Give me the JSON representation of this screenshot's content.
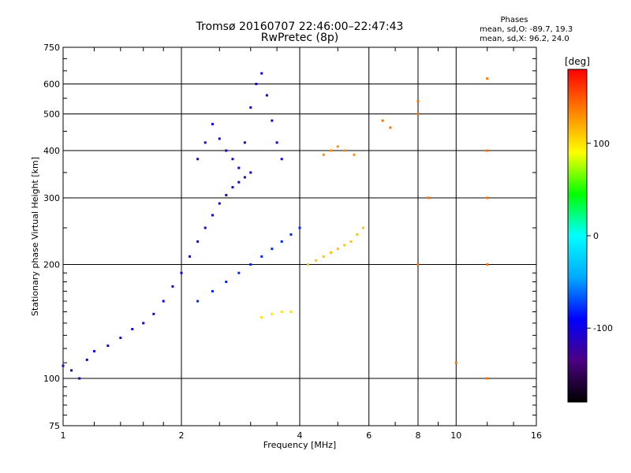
{
  "title_line1": "Tromsø 20160707 22:46:00–22:47:43",
  "title_line2": "RwPretec (8p)",
  "phases": {
    "title": "Phases",
    "o_stats": "mean, sd,O: -89.7, 19.3",
    "x_stats": "mean, sd,X:  96.2, 24.0"
  },
  "colorbar": {
    "label": "[deg]",
    "ticks": [
      "100",
      "0",
      "-100"
    ],
    "tick_values": [
      100,
      0,
      -100
    ],
    "range": [
      -180,
      180
    ],
    "colors": [
      "#000000",
      "#4b0082",
      "#0000ff",
      "#00aaff",
      "#00ffff",
      "#00ff00",
      "#ffff00",
      "#ff8000",
      "#ff0000"
    ]
  },
  "chart_data": {
    "type": "scatter",
    "title": "Tromsø 20160707 22:46:00–22:47:43",
    "subtitle": "RwPretec (8p)",
    "xlabel": "Frequency [MHz]",
    "ylabel": "Stationary phase Virtual Height [km]",
    "xscale": "log",
    "yscale": "log",
    "xlim": [
      1,
      16
    ],
    "ylim": [
      75,
      750
    ],
    "xticks": [
      1,
      2,
      4,
      6,
      8,
      10,
      16
    ],
    "xtick_labels": [
      "1",
      "2",
      "4",
      "6",
      "8",
      "10",
      "16"
    ],
    "yticks": [
      75,
      100,
      200,
      300,
      400,
      500,
      600,
      750
    ],
    "ytick_labels": [
      "75",
      "100",
      "200",
      "300",
      "400",
      "500",
      "600",
      "750"
    ],
    "vertical_gridlines": [
      2,
      4,
      6,
      8,
      10
    ],
    "horizontal_gridlines": [
      100,
      200,
      300,
      400,
      500,
      600
    ],
    "series": [
      {
        "cluster": "low-F-ramp",
        "phase": -100,
        "points": [
          [
            1.0,
            108
          ],
          [
            1.05,
            105
          ],
          [
            1.1,
            100
          ],
          [
            1.15,
            112
          ],
          [
            1.2,
            118
          ],
          [
            1.3,
            122
          ],
          [
            1.4,
            128
          ],
          [
            1.5,
            135
          ],
          [
            1.6,
            140
          ],
          [
            1.7,
            148
          ],
          [
            1.8,
            160
          ],
          [
            1.9,
            175
          ],
          [
            2.0,
            190
          ],
          [
            2.1,
            210
          ],
          [
            2.2,
            230
          ],
          [
            2.3,
            250
          ],
          [
            2.4,
            270
          ],
          [
            2.5,
            290
          ],
          [
            2.6,
            305
          ],
          [
            2.7,
            320
          ],
          [
            2.8,
            330
          ],
          [
            2.9,
            340
          ],
          [
            3.0,
            350
          ]
        ]
      },
      {
        "cluster": "F-upper",
        "phase": -100,
        "points": [
          [
            2.2,
            380
          ],
          [
            2.3,
            420
          ],
          [
            2.4,
            470
          ],
          [
            2.5,
            430
          ],
          [
            2.6,
            400
          ],
          [
            2.7,
            380
          ],
          [
            2.8,
            360
          ],
          [
            2.9,
            420
          ],
          [
            3.0,
            520
          ],
          [
            3.1,
            600
          ],
          [
            3.2,
            640
          ],
          [
            3.3,
            560
          ],
          [
            3.4,
            480
          ],
          [
            3.5,
            420
          ],
          [
            3.6,
            380
          ]
        ]
      },
      {
        "cluster": "F-mid",
        "phase": -80,
        "points": [
          [
            2.2,
            160
          ],
          [
            2.4,
            170
          ],
          [
            2.6,
            180
          ],
          [
            2.8,
            190
          ],
          [
            3.0,
            200
          ],
          [
            3.2,
            210
          ],
          [
            3.4,
            220
          ],
          [
            3.6,
            230
          ],
          [
            3.8,
            240
          ],
          [
            4.0,
            250
          ]
        ]
      },
      {
        "cluster": "X-mode-200",
        "phase": 110,
        "points": [
          [
            4.2,
            200
          ],
          [
            4.4,
            205
          ],
          [
            4.6,
            210
          ],
          [
            4.8,
            215
          ],
          [
            5.0,
            220
          ],
          [
            5.2,
            225
          ],
          [
            5.4,
            230
          ],
          [
            5.6,
            240
          ],
          [
            5.8,
            250
          ]
        ]
      },
      {
        "cluster": "X-mode-145",
        "phase": 100,
        "points": [
          [
            3.2,
            145
          ],
          [
            3.4,
            148
          ],
          [
            3.6,
            150
          ],
          [
            3.8,
            150
          ]
        ]
      },
      {
        "cluster": "X-mode-400",
        "phase": 130,
        "points": [
          [
            4.6,
            390
          ],
          [
            4.8,
            400
          ],
          [
            5.0,
            410
          ],
          [
            5.2,
            400
          ],
          [
            5.5,
            390
          ]
        ]
      },
      {
        "cluster": "high-F-sparse",
        "phase": 140,
        "points": [
          [
            6.5,
            480
          ],
          [
            6.8,
            460
          ],
          [
            8.0,
            540
          ],
          [
            8.0,
            500
          ],
          [
            8.0,
            200
          ],
          [
            8.5,
            300
          ],
          [
            10.0,
            110
          ],
          [
            12.0,
            620
          ],
          [
            12.0,
            400
          ],
          [
            12.0,
            300
          ],
          [
            12.0,
            200
          ],
          [
            12.0,
            100
          ]
        ]
      }
    ]
  }
}
